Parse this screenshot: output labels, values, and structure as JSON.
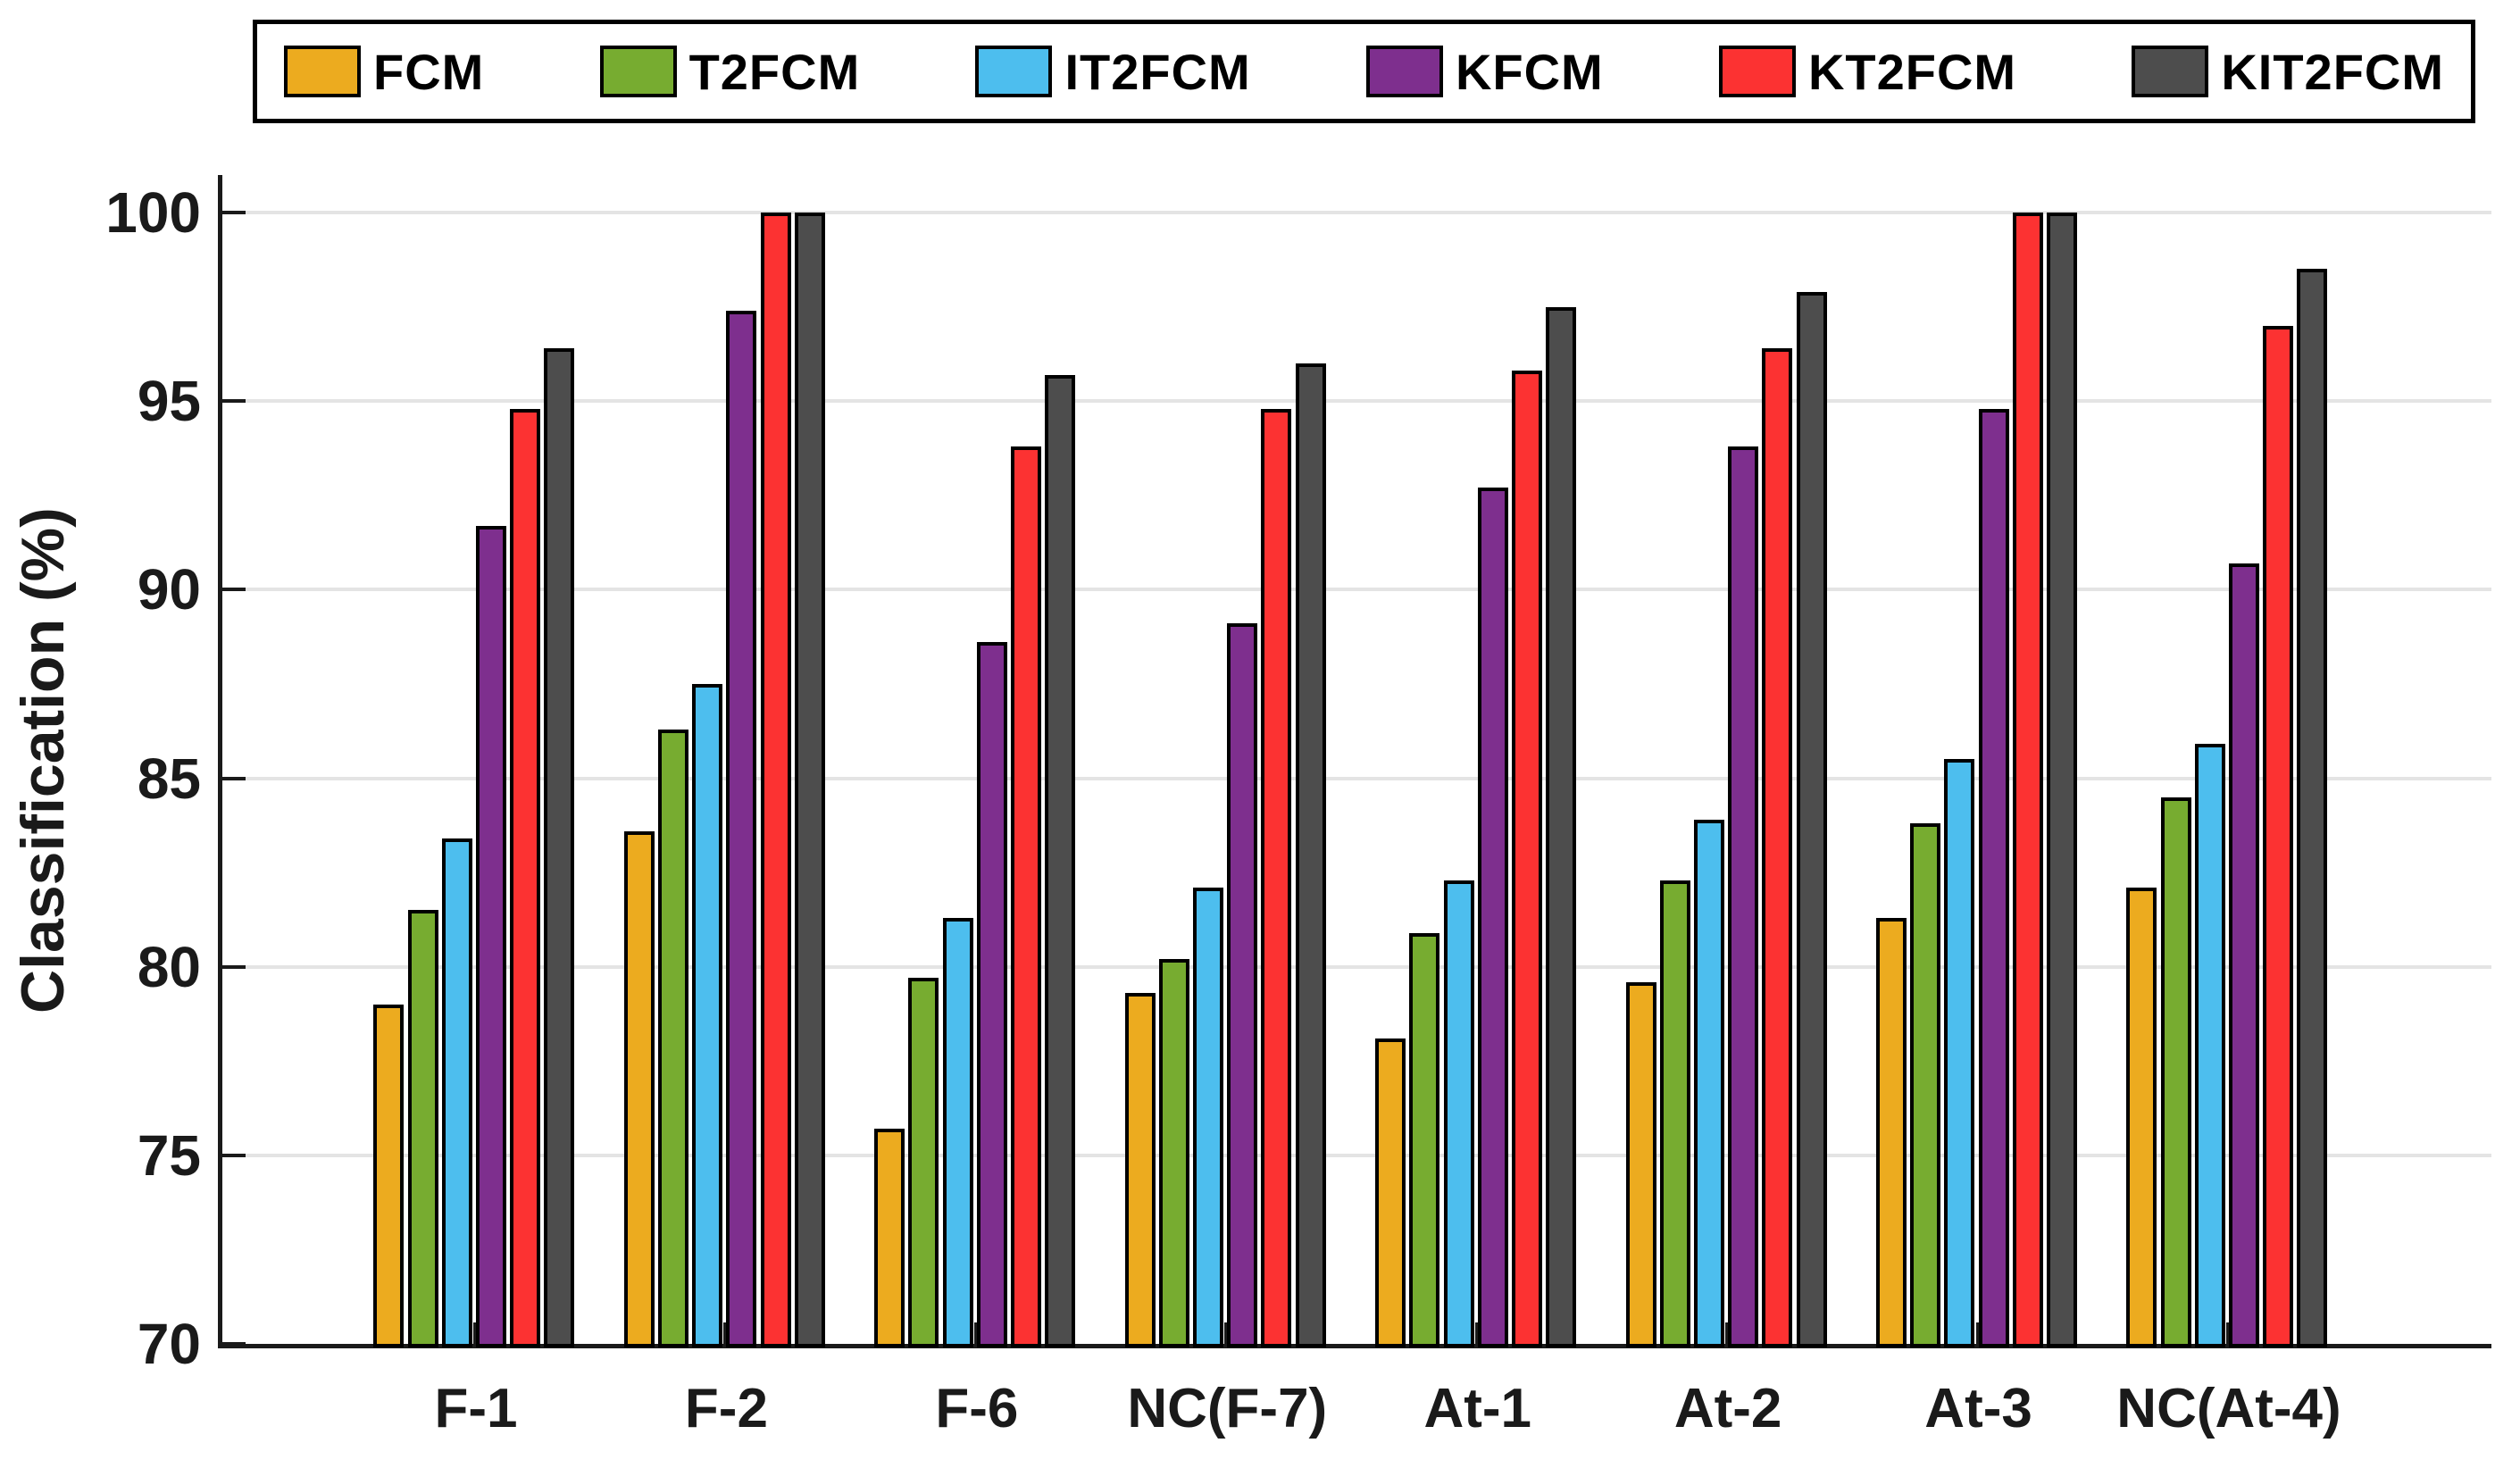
{
  "chart_data": {
    "type": "bar",
    "title": "",
    "xlabel": "",
    "ylabel": "Classification (%)",
    "ylim": [
      70,
      101
    ],
    "yticks": [
      70,
      75,
      80,
      85,
      90,
      95,
      100
    ],
    "grid": "horizontal gridlines at labeled ticks, light gray, no vertical grid",
    "legend_position": "top horizontal boxed",
    "categories": [
      "F-1",
      "F-2",
      "F-6",
      "NC(F-7)",
      "At-1",
      "At-2",
      "At-3",
      "NC(At-4)"
    ],
    "series": [
      {
        "name": "FCM",
        "color": "#ECAB1F",
        "values": [
          79.0,
          83.6,
          75.7,
          79.3,
          78.1,
          79.6,
          81.3,
          82.1
        ]
      },
      {
        "name": "T2FCM",
        "color": "#77AC30",
        "values": [
          81.5,
          86.3,
          79.7,
          80.2,
          80.9,
          82.3,
          83.8,
          84.5
        ]
      },
      {
        "name": "IT2FCM",
        "color": "#4DBEEE",
        "values": [
          83.4,
          87.5,
          81.3,
          82.1,
          82.3,
          83.9,
          85.5,
          85.9
        ]
      },
      {
        "name": "KFCM",
        "color": "#7E2F8E",
        "values": [
          91.7,
          97.4,
          88.6,
          89.1,
          92.7,
          93.8,
          94.8,
          90.7
        ]
      },
      {
        "name": "KT2FCM",
        "color": "#FC3232",
        "values": [
          94.8,
          100.0,
          93.8,
          94.8,
          95.8,
          96.4,
          100.0,
          97.0
        ]
      },
      {
        "name": "KIT2FCM",
        "color": "#4D4D4D",
        "values": [
          96.4,
          100.0,
          95.7,
          96.0,
          97.5,
          97.9,
          100.0,
          98.5
        ]
      }
    ],
    "bar_outline_color": "#000000",
    "axis_color": "#1a1a1a",
    "grid_color": "#e4e4e4",
    "tick_label_color": "#1a1a1a"
  }
}
